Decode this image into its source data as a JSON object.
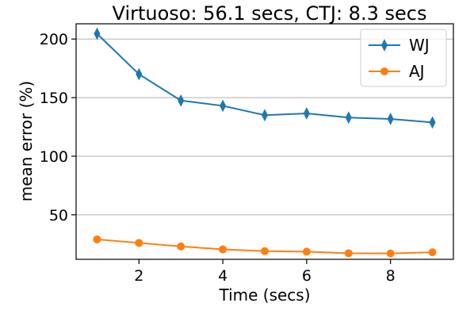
{
  "chart_data": {
    "type": "line",
    "title": "Virtuoso: 56.1 secs, CTJ: 8.3 secs",
    "xlabel": "Time (secs)",
    "ylabel": "mean error (%)",
    "x": [
      1,
      2,
      3,
      4,
      5,
      6,
      7,
      8,
      9
    ],
    "xlim": [
      0.5,
      9.5
    ],
    "ylim": [
      12,
      213
    ],
    "xticks": [
      2,
      4,
      6,
      8
    ],
    "yticks": [
      50,
      100,
      150,
      200
    ],
    "xtick_labels": [
      "2",
      "4",
      "6",
      "8"
    ],
    "ytick_labels": [
      "50",
      "100",
      "150",
      "200"
    ],
    "grid": "horizontal",
    "legend_position": "top-right",
    "series": [
      {
        "name": "WJ",
        "color": "#1f77b4",
        "marker": "thin-diamond",
        "values": [
          204.5,
          170,
          147.5,
          143,
          135,
          136.5,
          133,
          131.8,
          128.8
        ]
      },
      {
        "name": "AJ",
        "color": "#ff7f0e",
        "marker": "circle",
        "values": [
          29,
          26,
          23,
          20.5,
          19,
          18.5,
          17.2,
          17,
          18
        ]
      }
    ]
  }
}
